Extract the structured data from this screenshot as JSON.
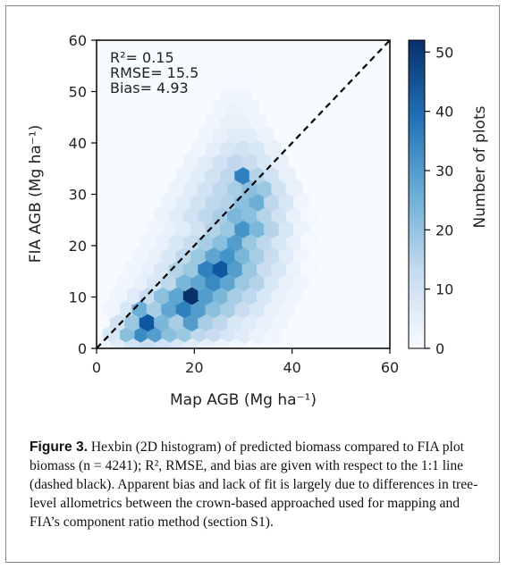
{
  "chart_data": {
    "type": "heatmap",
    "subtype": "hexbin",
    "xlabel": "Map AGB (Mg ha⁻¹)",
    "ylabel": "FIA AGB (Mg ha⁻¹)",
    "xlim": [
      0,
      60
    ],
    "ylim": [
      0,
      60
    ],
    "x_ticks": [
      "0",
      "20",
      "40",
      "60"
    ],
    "y_ticks": [
      "0",
      "10",
      "20",
      "30",
      "40",
      "50",
      "60"
    ],
    "reference_line": "1:1 (dashed black)",
    "annotations": [
      "R²= 0.15",
      "RMSE= 15.5",
      "Bias= 4.93"
    ],
    "colorbar": {
      "label": "Number of plots",
      "range": [
        0,
        52
      ],
      "ticks": [
        "0",
        "10",
        "20",
        "30",
        "40",
        "50"
      ],
      "colormap": "Blues"
    },
    "hex_size_data_units": 2.0,
    "bins": [
      {
        "x": 9,
        "y": 2.6,
        "count": 34
      },
      {
        "x": 12,
        "y": 2.6,
        "count": 30
      },
      {
        "x": 6,
        "y": 2.6,
        "count": 22
      },
      {
        "x": 15,
        "y": 2.6,
        "count": 22
      },
      {
        "x": 18,
        "y": 2.6,
        "count": 20
      },
      {
        "x": 21,
        "y": 2.6,
        "count": 14
      },
      {
        "x": 24,
        "y": 2.6,
        "count": 12
      },
      {
        "x": 27,
        "y": 2.6,
        "count": 8
      },
      {
        "x": 30,
        "y": 2.6,
        "count": 6
      },
      {
        "x": 33,
        "y": 2.6,
        "count": 3
      },
      {
        "x": 36,
        "y": 2.6,
        "count": 2
      },
      {
        "x": 3,
        "y": 2.6,
        "count": 8
      },
      {
        "x": 4.5,
        "y": 5.2,
        "count": 10
      },
      {
        "x": 7.5,
        "y": 5.2,
        "count": 20
      },
      {
        "x": 10.5,
        "y": 5.2,
        "count": 44
      },
      {
        "x": 13.5,
        "y": 5.2,
        "count": 24
      },
      {
        "x": 16.5,
        "y": 5.2,
        "count": 18
      },
      {
        "x": 19.5,
        "y": 5.2,
        "count": 30
      },
      {
        "x": 22.5,
        "y": 5.2,
        "count": 18
      },
      {
        "x": 25.5,
        "y": 5.2,
        "count": 14
      },
      {
        "x": 28.5,
        "y": 5.2,
        "count": 8
      },
      {
        "x": 31.5,
        "y": 5.2,
        "count": 6
      },
      {
        "x": 34.5,
        "y": 5.2,
        "count": 4
      },
      {
        "x": 37.5,
        "y": 5.2,
        "count": 2
      },
      {
        "x": 6,
        "y": 7.8,
        "count": 8
      },
      {
        "x": 9,
        "y": 7.8,
        "count": 26
      },
      {
        "x": 12,
        "y": 7.8,
        "count": 18
      },
      {
        "x": 15,
        "y": 7.8,
        "count": 28
      },
      {
        "x": 18,
        "y": 7.8,
        "count": 36
      },
      {
        "x": 21,
        "y": 7.8,
        "count": 30
      },
      {
        "x": 24,
        "y": 7.8,
        "count": 22
      },
      {
        "x": 27,
        "y": 7.8,
        "count": 18
      },
      {
        "x": 30,
        "y": 7.8,
        "count": 12
      },
      {
        "x": 33,
        "y": 7.8,
        "count": 8
      },
      {
        "x": 36,
        "y": 7.8,
        "count": 4
      },
      {
        "x": 39,
        "y": 7.8,
        "count": 2
      },
      {
        "x": 7.5,
        "y": 10.4,
        "count": 6
      },
      {
        "x": 10.5,
        "y": 10.4,
        "count": 12
      },
      {
        "x": 13.5,
        "y": 10.4,
        "count": 22
      },
      {
        "x": 16.5,
        "y": 10.4,
        "count": 28
      },
      {
        "x": 19.5,
        "y": 10.4,
        "count": 52
      },
      {
        "x": 22.5,
        "y": 10.4,
        "count": 30
      },
      {
        "x": 25.5,
        "y": 10.4,
        "count": 24
      },
      {
        "x": 28.5,
        "y": 10.4,
        "count": 18
      },
      {
        "x": 31.5,
        "y": 10.4,
        "count": 14
      },
      {
        "x": 34.5,
        "y": 10.4,
        "count": 8
      },
      {
        "x": 37.5,
        "y": 10.4,
        "count": 4
      },
      {
        "x": 40.5,
        "y": 10.4,
        "count": 2
      },
      {
        "x": 9,
        "y": 13,
        "count": 4
      },
      {
        "x": 12,
        "y": 13,
        "count": 8
      },
      {
        "x": 15,
        "y": 13,
        "count": 14
      },
      {
        "x": 18,
        "y": 13,
        "count": 24
      },
      {
        "x": 21,
        "y": 13,
        "count": 28
      },
      {
        "x": 24,
        "y": 13,
        "count": 34
      },
      {
        "x": 27,
        "y": 13,
        "count": 28
      },
      {
        "x": 30,
        "y": 13,
        "count": 20
      },
      {
        "x": 33,
        "y": 13,
        "count": 16
      },
      {
        "x": 36,
        "y": 13,
        "count": 8
      },
      {
        "x": 39,
        "y": 13,
        "count": 4
      },
      {
        "x": 42,
        "y": 13,
        "count": 2
      },
      {
        "x": 10.5,
        "y": 15.6,
        "count": 4
      },
      {
        "x": 13.5,
        "y": 15.6,
        "count": 8
      },
      {
        "x": 16.5,
        "y": 15.6,
        "count": 16
      },
      {
        "x": 19.5,
        "y": 15.6,
        "count": 20
      },
      {
        "x": 22.5,
        "y": 15.6,
        "count": 36
      },
      {
        "x": 25.5,
        "y": 15.6,
        "count": 44
      },
      {
        "x": 28.5,
        "y": 15.6,
        "count": 30
      },
      {
        "x": 31.5,
        "y": 15.6,
        "count": 20
      },
      {
        "x": 34.5,
        "y": 15.6,
        "count": 12
      },
      {
        "x": 37.5,
        "y": 15.6,
        "count": 8
      },
      {
        "x": 40.5,
        "y": 15.6,
        "count": 3
      },
      {
        "x": 12,
        "y": 18.2,
        "count": 4
      },
      {
        "x": 15,
        "y": 18.2,
        "count": 8
      },
      {
        "x": 18,
        "y": 18.2,
        "count": 14
      },
      {
        "x": 21,
        "y": 18.2,
        "count": 20
      },
      {
        "x": 24,
        "y": 18.2,
        "count": 28
      },
      {
        "x": 27,
        "y": 18.2,
        "count": 32
      },
      {
        "x": 30,
        "y": 18.2,
        "count": 24
      },
      {
        "x": 33,
        "y": 18.2,
        "count": 18
      },
      {
        "x": 36,
        "y": 18.2,
        "count": 12
      },
      {
        "x": 39,
        "y": 18.2,
        "count": 6
      },
      {
        "x": 42,
        "y": 18.2,
        "count": 2
      },
      {
        "x": 13.5,
        "y": 20.8,
        "count": 4
      },
      {
        "x": 16.5,
        "y": 20.8,
        "count": 8
      },
      {
        "x": 19.5,
        "y": 20.8,
        "count": 12
      },
      {
        "x": 22.5,
        "y": 20.8,
        "count": 18
      },
      {
        "x": 25.5,
        "y": 20.8,
        "count": 22
      },
      {
        "x": 28.5,
        "y": 20.8,
        "count": 30
      },
      {
        "x": 31.5,
        "y": 20.8,
        "count": 20
      },
      {
        "x": 34.5,
        "y": 20.8,
        "count": 14
      },
      {
        "x": 37.5,
        "y": 20.8,
        "count": 8
      },
      {
        "x": 40.5,
        "y": 20.8,
        "count": 4
      },
      {
        "x": 15,
        "y": 23.4,
        "count": 4
      },
      {
        "x": 18,
        "y": 23.4,
        "count": 6
      },
      {
        "x": 21,
        "y": 23.4,
        "count": 10
      },
      {
        "x": 24,
        "y": 23.4,
        "count": 16
      },
      {
        "x": 27,
        "y": 23.4,
        "count": 20
      },
      {
        "x": 30,
        "y": 23.4,
        "count": 32
      },
      {
        "x": 33,
        "y": 23.4,
        "count": 24
      },
      {
        "x": 36,
        "y": 23.4,
        "count": 16
      },
      {
        "x": 39,
        "y": 23.4,
        "count": 8
      },
      {
        "x": 42,
        "y": 23.4,
        "count": 3
      },
      {
        "x": 13.5,
        "y": 26,
        "count": 3
      },
      {
        "x": 16.5,
        "y": 26,
        "count": 6
      },
      {
        "x": 19.5,
        "y": 26,
        "count": 10
      },
      {
        "x": 22.5,
        "y": 26,
        "count": 14
      },
      {
        "x": 25.5,
        "y": 26,
        "count": 18
      },
      {
        "x": 28.5,
        "y": 26,
        "count": 24
      },
      {
        "x": 31.5,
        "y": 26,
        "count": 22
      },
      {
        "x": 34.5,
        "y": 26,
        "count": 16
      },
      {
        "x": 37.5,
        "y": 26,
        "count": 10
      },
      {
        "x": 40.5,
        "y": 26,
        "count": 4
      },
      {
        "x": 15,
        "y": 28.6,
        "count": 3
      },
      {
        "x": 18,
        "y": 28.6,
        "count": 6
      },
      {
        "x": 21,
        "y": 28.6,
        "count": 10
      },
      {
        "x": 24,
        "y": 28.6,
        "count": 14
      },
      {
        "x": 27,
        "y": 28.6,
        "count": 16
      },
      {
        "x": 30,
        "y": 28.6,
        "count": 22
      },
      {
        "x": 33,
        "y": 28.6,
        "count": 26
      },
      {
        "x": 36,
        "y": 28.6,
        "count": 14
      },
      {
        "x": 39,
        "y": 28.6,
        "count": 8
      },
      {
        "x": 42,
        "y": 28.6,
        "count": 2
      },
      {
        "x": 16.5,
        "y": 31.2,
        "count": 3
      },
      {
        "x": 19.5,
        "y": 31.2,
        "count": 6
      },
      {
        "x": 22.5,
        "y": 31.2,
        "count": 10
      },
      {
        "x": 25.5,
        "y": 31.2,
        "count": 14
      },
      {
        "x": 28.5,
        "y": 31.2,
        "count": 18
      },
      {
        "x": 31.5,
        "y": 31.2,
        "count": 22
      },
      {
        "x": 34.5,
        "y": 31.2,
        "count": 20
      },
      {
        "x": 37.5,
        "y": 31.2,
        "count": 10
      },
      {
        "x": 40.5,
        "y": 31.2,
        "count": 4
      },
      {
        "x": 18,
        "y": 33.8,
        "count": 3
      },
      {
        "x": 21,
        "y": 33.8,
        "count": 6
      },
      {
        "x": 24,
        "y": 33.8,
        "count": 10
      },
      {
        "x": 27,
        "y": 33.8,
        "count": 14
      },
      {
        "x": 30,
        "y": 33.8,
        "count": 36
      },
      {
        "x": 33,
        "y": 33.8,
        "count": 16
      },
      {
        "x": 36,
        "y": 33.8,
        "count": 10
      },
      {
        "x": 39,
        "y": 33.8,
        "count": 4
      },
      {
        "x": 19.5,
        "y": 36.4,
        "count": 3
      },
      {
        "x": 22.5,
        "y": 36.4,
        "count": 6
      },
      {
        "x": 25.5,
        "y": 36.4,
        "count": 10
      },
      {
        "x": 28.5,
        "y": 36.4,
        "count": 14
      },
      {
        "x": 31.5,
        "y": 36.4,
        "count": 12
      },
      {
        "x": 34.5,
        "y": 36.4,
        "count": 8
      },
      {
        "x": 37.5,
        "y": 36.4,
        "count": 4
      },
      {
        "x": 21,
        "y": 39,
        "count": 2
      },
      {
        "x": 24,
        "y": 39,
        "count": 5
      },
      {
        "x": 27,
        "y": 39,
        "count": 8
      },
      {
        "x": 30,
        "y": 39,
        "count": 10
      },
      {
        "x": 33,
        "y": 39,
        "count": 8
      },
      {
        "x": 36,
        "y": 39,
        "count": 4
      },
      {
        "x": 22.5,
        "y": 41.6,
        "count": 2
      },
      {
        "x": 25.5,
        "y": 41.6,
        "count": 4
      },
      {
        "x": 28.5,
        "y": 41.6,
        "count": 6
      },
      {
        "x": 31.5,
        "y": 41.6,
        "count": 6
      },
      {
        "x": 34.5,
        "y": 41.6,
        "count": 3
      },
      {
        "x": 24,
        "y": 44.2,
        "count": 2
      },
      {
        "x": 27,
        "y": 44.2,
        "count": 4
      },
      {
        "x": 30,
        "y": 44.2,
        "count": 4
      },
      {
        "x": 33,
        "y": 44.2,
        "count": 2
      },
      {
        "x": 25.5,
        "y": 46.8,
        "count": 2
      },
      {
        "x": 28.5,
        "y": 46.8,
        "count": 3
      },
      {
        "x": 31.5,
        "y": 46.8,
        "count": 2
      },
      {
        "x": 27,
        "y": 49.4,
        "count": 2
      },
      {
        "x": 30,
        "y": 49.4,
        "count": 2
      },
      {
        "x": 28.5,
        "y": 52,
        "count": 1
      },
      {
        "x": 31.5,
        "y": 52,
        "count": 1
      },
      {
        "x": 30,
        "y": 54.6,
        "count": 1
      },
      {
        "x": 25.5,
        "y": 52,
        "count": 1
      },
      {
        "x": 1.5,
        "y": 0,
        "count": 2
      },
      {
        "x": 4.5,
        "y": 0,
        "count": 6
      },
      {
        "x": 7.5,
        "y": 0,
        "count": 10
      },
      {
        "x": 10.5,
        "y": 0,
        "count": 12
      },
      {
        "x": 13.5,
        "y": 0,
        "count": 10
      },
      {
        "x": 16.5,
        "y": 0,
        "count": 8
      },
      {
        "x": 19.5,
        "y": 0,
        "count": 6
      },
      {
        "x": 22.5,
        "y": 0,
        "count": 4
      },
      {
        "x": 25.5,
        "y": 0,
        "count": 3
      },
      {
        "x": 28.5,
        "y": 0,
        "count": 2
      },
      {
        "x": 3,
        "y": 7.8,
        "count": 2
      },
      {
        "x": 4.5,
        "y": 10.4,
        "count": 2
      },
      {
        "x": 6,
        "y": 13,
        "count": 2
      },
      {
        "x": 7.5,
        "y": 15.6,
        "count": 2
      },
      {
        "x": 9,
        "y": 18.2,
        "count": 2
      },
      {
        "x": 10.5,
        "y": 20.8,
        "count": 2
      },
      {
        "x": 12,
        "y": 23.4,
        "count": 2
      },
      {
        "x": 43.5,
        "y": 15.6,
        "count": 1
      },
      {
        "x": 43.5,
        "y": 20.8,
        "count": 1
      },
      {
        "x": 43.5,
        "y": 26,
        "count": 1
      }
    ]
  },
  "caption": {
    "label": "Figure 3.",
    "text": " Hexbin (2D histogram) of predicted biomass compared to FIA plot biomass (n = 4241); R², RMSE, and bias are given with respect to the 1:1 line (dashed black). Apparent bias and lack of fit is largely due to differences in tree-level allometrics between the crown-based approached used for mapping and FIA’s component ratio method (section S1)."
  }
}
